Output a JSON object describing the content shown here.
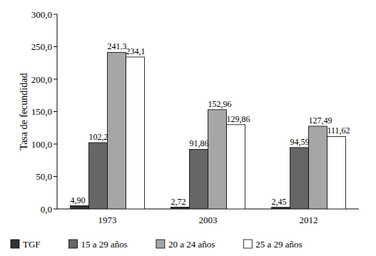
{
  "chart_data": {
    "type": "bar",
    "ylabel": "Tasa de fecundidad",
    "categories": [
      "1973",
      "2003",
      "2012"
    ],
    "series": [
      {
        "name": "TGF",
        "color": "#333333",
        "values": [
          4.9,
          2.72,
          2.45
        ],
        "value_labels": [
          "4,90",
          "2,72",
          "2,45"
        ]
      },
      {
        "name": "15 a 29 años",
        "color": "#666666",
        "values": [
          102.2,
          91.86,
          94.59
        ],
        "value_labels": [
          "102,2",
          "91,86",
          "94,59"
        ]
      },
      {
        "name": "20 a 24 años",
        "color": "#a6a6a6",
        "values": [
          241.3,
          152.96,
          127.49
        ],
        "value_labels": [
          "241.3",
          "152,96",
          "127,49"
        ]
      },
      {
        "name": "25 a 29 años",
        "color": "#ffffff",
        "values": [
          234.1,
          129.86,
          111.62
        ],
        "value_labels": [
          "234,1",
          "129,86",
          "111,62"
        ]
      }
    ],
    "ylim": [
      0,
      300
    ],
    "yticks": [
      {
        "value": 0,
        "label": "0,0"
      },
      {
        "value": 50,
        "label": "50,0"
      },
      {
        "value": 100,
        "label": "100,0"
      },
      {
        "value": 150,
        "label": "150,0"
      },
      {
        "value": 200,
        "label": "200,0"
      },
      {
        "value": 250,
        "label": "250,0"
      },
      {
        "value": 300,
        "label": "300,0"
      }
    ],
    "grid": false,
    "legend": "bottom",
    "data_labels": true
  }
}
